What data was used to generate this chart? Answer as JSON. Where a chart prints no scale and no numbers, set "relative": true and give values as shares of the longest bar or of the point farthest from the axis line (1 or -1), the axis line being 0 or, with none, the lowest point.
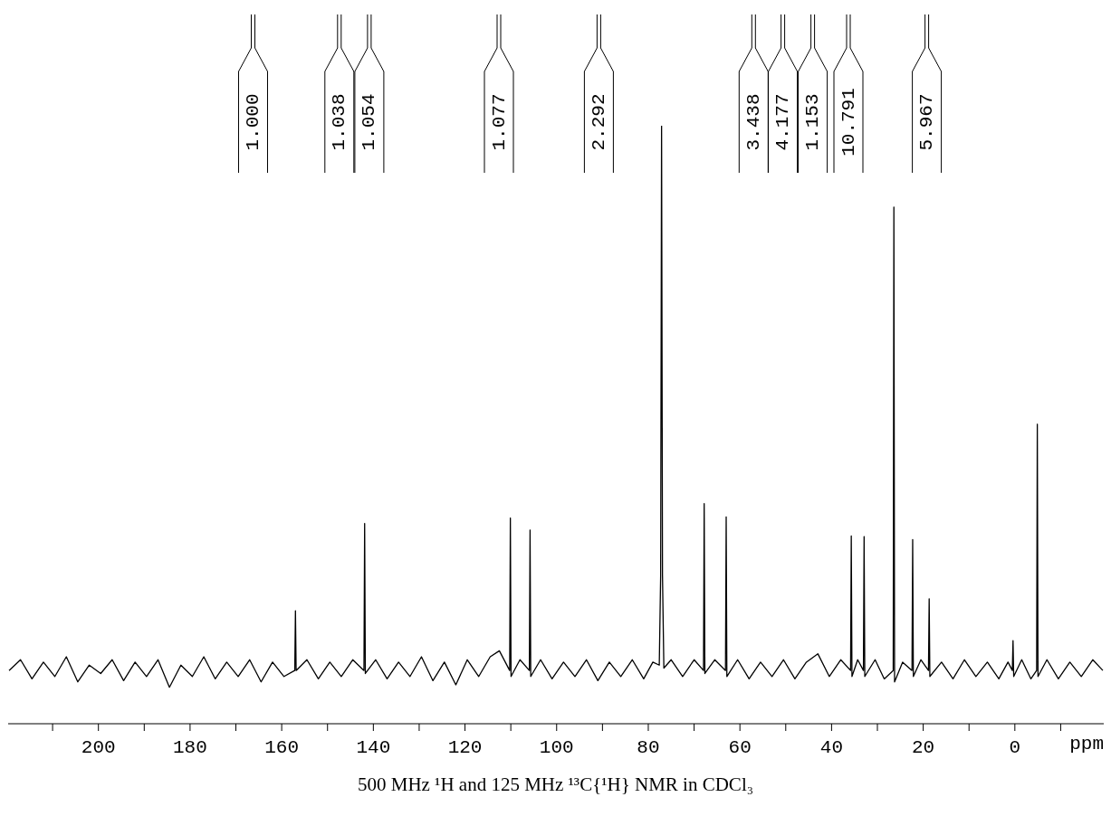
{
  "chart_data": {
    "type": "line",
    "relative": true,
    "xlabel": "ppm",
    "xlim": [
      219.7,
      -19.4
    ],
    "xticks": [
      {
        "value": 210,
        "label": null
      },
      200,
      {
        "value": 190,
        "label": null
      },
      180,
      {
        "value": 170,
        "label": null
      },
      160,
      {
        "value": 150,
        "label": null
      },
      140,
      {
        "value": 130,
        "label": null
      },
      120,
      {
        "value": 110,
        "label": null
      },
      100,
      {
        "value": 90,
        "label": null
      },
      80,
      {
        "value": 70,
        "label": null
      },
      60,
      {
        "value": 50,
        "label": null
      },
      40,
      {
        "value": 30,
        "label": null
      },
      20,
      {
        "value": 10,
        "label": null
      },
      0,
      {
        "value": -10,
        "label": null
      }
    ],
    "x": [
      219.5,
      217,
      214.5,
      212,
      209.5,
      207,
      204.5,
      202,
      199.5,
      197,
      194.5,
      192,
      189.5,
      187,
      184.5,
      182,
      179.5,
      177,
      174.5,
      172,
      169.5,
      167,
      164.5,
      162,
      159.5,
      157.15,
      157.0,
      156.85,
      154.5,
      152,
      149.5,
      147,
      144.5,
      142.05,
      141.9,
      141.75,
      139.5,
      137,
      134.5,
      132,
      129.5,
      127,
      124.5,
      122,
      119.5,
      117,
      114.5,
      112.5,
      110.25,
      110.1,
      109.95,
      108,
      105.95,
      105.8,
      105.65,
      103.5,
      101,
      98.5,
      96,
      93.5,
      91,
      88.5,
      86,
      83.5,
      81,
      79,
      77.6,
      77.3,
      77.1,
      76.9,
      76.6,
      75,
      72.5,
      70,
      67.95,
      67.8,
      67.65,
      65.5,
      63.15,
      63.0,
      62.85,
      60.5,
      58,
      55.5,
      53,
      50.5,
      48,
      45.5,
      43,
      40.5,
      38,
      35.85,
      35.7,
      35.55,
      34.3,
      33.05,
      32.9,
      32.75,
      30.5,
      28.5,
      26.55,
      26.4,
      26.25,
      24.5,
      22.45,
      22.3,
      22.15,
      20.5,
      18.85,
      18.7,
      18.55,
      16,
      13.5,
      11,
      8.5,
      6,
      3.5,
      1.5,
      0.55,
      0.4,
      0.25,
      -1.5,
      -3.5,
      -4.75,
      -4.9,
      -5.05,
      -7,
      -9.5,
      -12,
      -14.5,
      -17,
      -19.2
    ],
    "series": [
      {
        "color": "#000000",
        "values": [
          0.089,
          0.107,
          0.075,
          0.103,
          0.079,
          0.112,
          0.07,
          0.098,
          0.084,
          0.107,
          0.072,
          0.103,
          0.079,
          0.107,
          0.061,
          0.098,
          0.079,
          0.112,
          0.075,
          0.103,
          0.079,
          0.107,
          0.07,
          0.103,
          0.079,
          0.089,
          0.189,
          0.089,
          0.107,
          0.075,
          0.103,
          0.079,
          0.107,
          0.089,
          0.335,
          0.084,
          0.107,
          0.075,
          0.103,
          0.079,
          0.112,
          0.072,
          0.103,
          0.065,
          0.107,
          0.079,
          0.112,
          0.122,
          0.089,
          0.344,
          0.079,
          0.107,
          0.089,
          0.324,
          0.079,
          0.107,
          0.075,
          0.103,
          0.079,
          0.107,
          0.072,
          0.103,
          0.079,
          0.107,
          0.075,
          0.103,
          0.098,
          0.248,
          1.0,
          0.248,
          0.093,
          0.107,
          0.079,
          0.107,
          0.089,
          0.368,
          0.084,
          0.107,
          0.089,
          0.346,
          0.079,
          0.107,
          0.075,
          0.103,
          0.079,
          0.107,
          0.075,
          0.103,
          0.117,
          0.079,
          0.107,
          0.089,
          0.314,
          0.079,
          0.107,
          0.089,
          0.313,
          0.079,
          0.107,
          0.075,
          0.089,
          0.864,
          0.07,
          0.103,
          0.089,
          0.308,
          0.079,
          0.107,
          0.089,
          0.209,
          0.079,
          0.103,
          0.075,
          0.107,
          0.079,
          0.103,
          0.075,
          0.103,
          0.089,
          0.139,
          0.079,
          0.107,
          0.075,
          0.089,
          0.501,
          0.079,
          0.107,
          0.075,
          0.103,
          0.079,
          0.107,
          0.089
        ]
      }
    ],
    "title": "500 MHz ¹H and 125 MHz ¹³C{¹H} NMR in CDCl₃",
    "annotations": [
      "1.000",
      "1.038",
      "1.054",
      "1.077",
      "2.292",
      "3.438",
      "4.177",
      "1.153",
      "10.791",
      "5.967"
    ]
  }
}
